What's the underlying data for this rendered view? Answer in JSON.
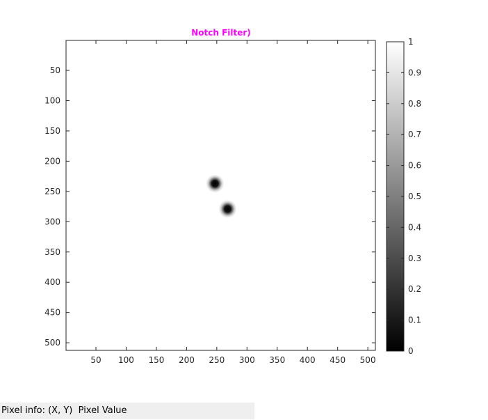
{
  "chart_data": {
    "type": "heatmap",
    "title": "Notch Filter)",
    "title_color": "#ff00ff",
    "xlabel": "",
    "ylabel": "",
    "xlim": [
      1,
      512
    ],
    "ylim": [
      1,
      512
    ],
    "y_direction": "reversed",
    "x_ticks": [
      50,
      100,
      150,
      200,
      250,
      300,
      350,
      400,
      450,
      500
    ],
    "y_ticks": [
      50,
      100,
      150,
      200,
      250,
      300,
      350,
      400,
      450,
      500
    ],
    "colormap": "gray",
    "colorbar": {
      "range": [
        0,
        1
      ],
      "ticks": [
        "0",
        "0.1",
        "0.2",
        "0.3",
        "0.4",
        "0.5",
        "0.6",
        "0.7",
        "0.8",
        "0.9",
        "1"
      ]
    },
    "background_value": 1,
    "notches": [
      {
        "x": 247,
        "y": 237,
        "min_value": 0
      },
      {
        "x": 268,
        "y": 279,
        "min_value": 0
      }
    ],
    "grid": false
  },
  "status_bar": {
    "label": "Pixel info:",
    "coords": "(X, Y)",
    "value": "Pixel Value"
  }
}
